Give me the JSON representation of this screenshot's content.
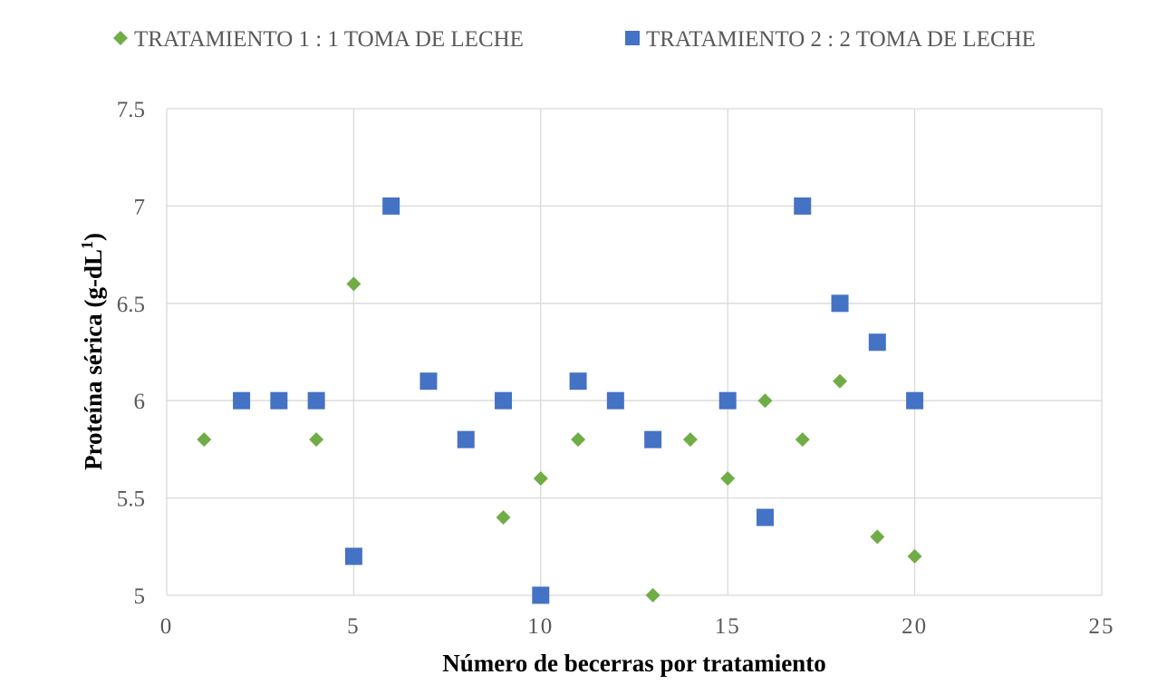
{
  "chart_data": {
    "type": "scatter",
    "xlabel": "Número de becerras por tratamiento",
    "ylabel_main": "Proteína sérica (g-dL",
    "ylabel_sup": "1",
    "ylabel_end": ")",
    "xlim": [
      0,
      25
    ],
    "ylim": [
      5,
      7.5
    ],
    "xticks": [
      0,
      5,
      10,
      15,
      20,
      25
    ],
    "yticks": [
      5,
      5.5,
      6,
      6.5,
      7,
      7.5
    ],
    "xtick_labels": [
      "0",
      "5",
      "10",
      "15",
      "20",
      "25"
    ],
    "ytick_labels": [
      "5",
      "5.5",
      "6",
      "6.5",
      "7",
      "7.5"
    ],
    "grid": true,
    "legend_position": "top",
    "series": [
      {
        "name": "TRATAMIENTO 1 : 1 TOMA DE LECHE",
        "marker": "diamond",
        "color": "#70ad47",
        "x": [
          1,
          4,
          5,
          9,
          10,
          11,
          13,
          14,
          15,
          16,
          17,
          18,
          19,
          20
        ],
        "y": [
          5.8,
          5.8,
          6.6,
          5.4,
          5.6,
          5.8,
          5.0,
          5.8,
          5.6,
          6.0,
          5.8,
          6.1,
          5.3,
          5.2
        ]
      },
      {
        "name": "TRATAMIENTO 2 : 2 TOMA DE LECHE",
        "marker": "square",
        "color": "#4472c4",
        "x": [
          2,
          3,
          4,
          5,
          6,
          7,
          8,
          9,
          10,
          11,
          12,
          13,
          15,
          16,
          17,
          18,
          19,
          20
        ],
        "y": [
          6.0,
          6.0,
          6.0,
          5.2,
          7.0,
          6.1,
          5.8,
          6.0,
          5.0,
          6.1,
          6.0,
          5.8,
          6.0,
          5.4,
          7.0,
          6.5,
          6.3,
          6.0
        ]
      }
    ]
  }
}
